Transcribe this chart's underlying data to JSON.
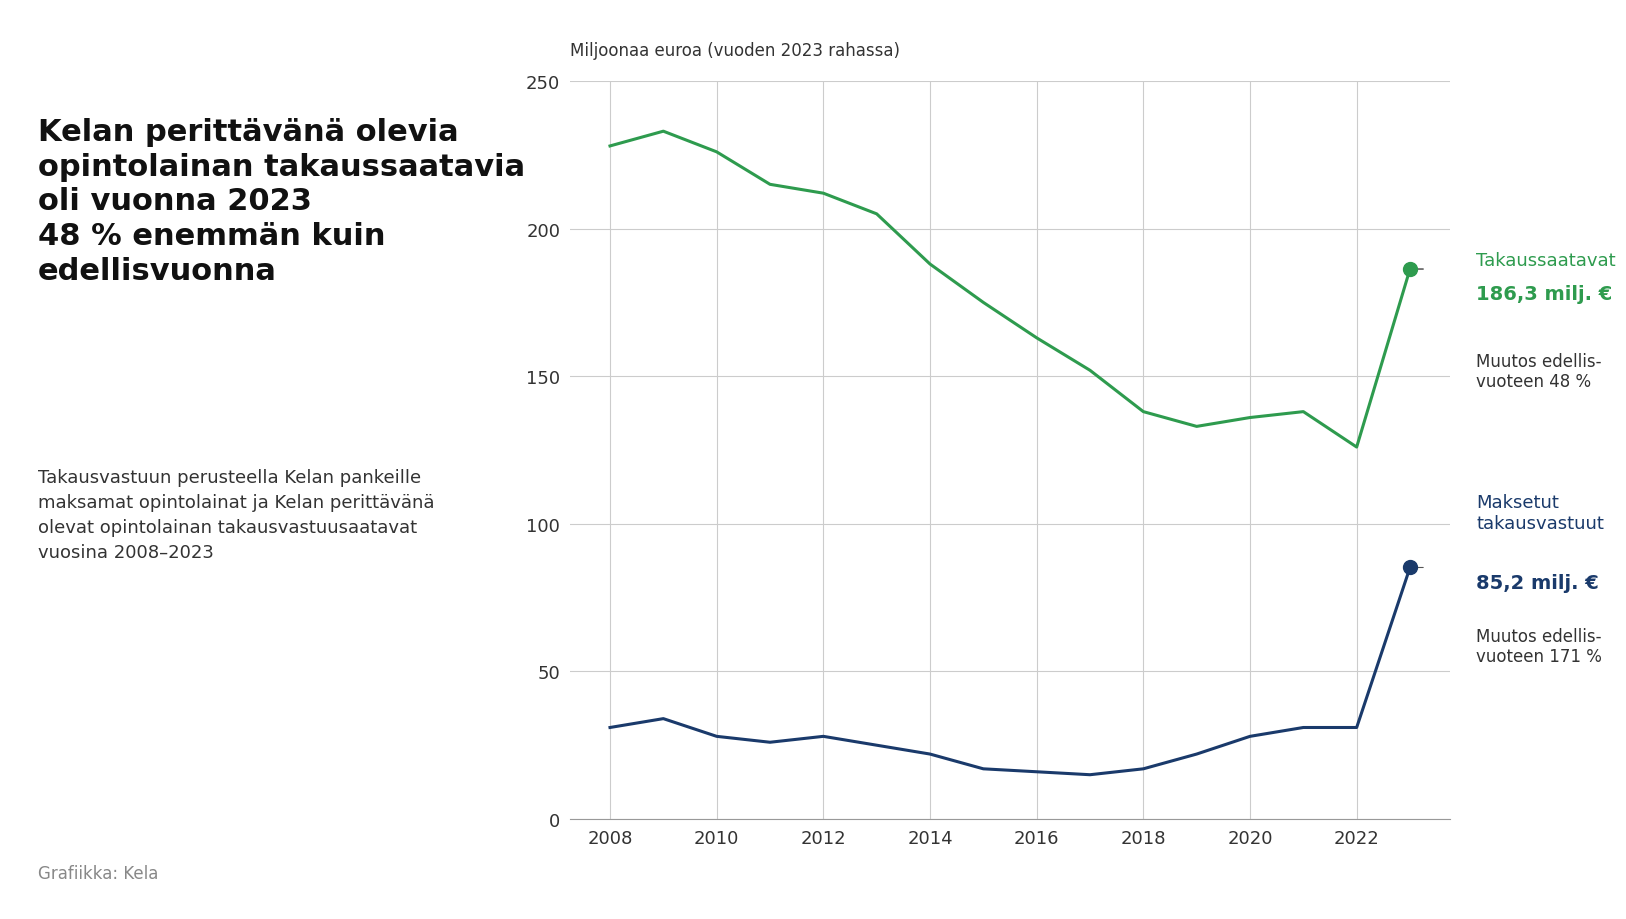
{
  "years": [
    2008,
    2009,
    2010,
    2011,
    2012,
    2013,
    2014,
    2015,
    2016,
    2017,
    2018,
    2019,
    2020,
    2021,
    2022,
    2023
  ],
  "green_line": [
    228,
    233,
    226,
    215,
    212,
    205,
    188,
    175,
    163,
    152,
    138,
    133,
    136,
    138,
    126,
    186.3
  ],
  "blue_line": [
    31,
    34,
    28,
    26,
    28,
    25,
    22,
    17,
    16,
    15,
    17,
    22,
    28,
    31,
    31,
    85.2
  ],
  "green_color": "#2e9b4e",
  "blue_color": "#1a3a6b",
  "background_color": "#ffffff",
  "grid_color": "#cccccc",
  "title_line1": "Kelan perittävänä olevia",
  "title_line2": "opintolainan takaussaatavia",
  "title_line3": "oli vuonna 2023",
  "title_line4": "48 % enemmän kuin",
  "title_line5": "edellisvuonna",
  "subtitle": "Takausvastuun perusteella Kelan pankeille\nmaksamat opintolainat ja Kelan perittävänä\nolevat opintolainan takausvastuusaatavat\nvuosina 2008–2023",
  "ylabel": "Miljoonaa euroa (vuoden 2023 rahassa)",
  "footer": "Grafiikka: Kela",
  "green_label": "Takaussaatavat",
  "green_value": "186,3 milj. €",
  "green_change": "Muutos edellis-\nvuoteen 48 %",
  "blue_label": "Maksetut\ntakausvastuut",
  "blue_value": "85,2 milj. €",
  "blue_change": "Muutos edellis-\nvuoteen 171 %",
  "ylim": [
    0,
    250
  ],
  "yticks": [
    0,
    50,
    100,
    150,
    200,
    250
  ]
}
